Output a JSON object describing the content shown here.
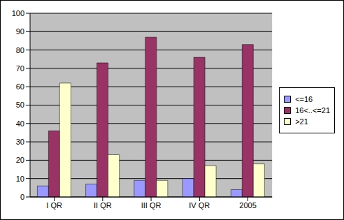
{
  "chart_data": {
    "type": "bar",
    "categories": [
      "I QR",
      "II QR",
      "III QR",
      "IV QR",
      "2005"
    ],
    "series": [
      {
        "name": "<=16",
        "color": "#9999FF",
        "values": [
          6,
          7,
          9,
          10,
          4
        ]
      },
      {
        "name": "16<..<=21",
        "color": "#993366",
        "values": [
          36,
          73,
          87,
          76,
          83
        ]
      },
      {
        "name": ">21",
        "color": "#FFFFCC",
        "values": [
          62,
          23,
          9,
          17,
          18
        ]
      }
    ],
    "ylim": [
      0,
      100
    ],
    "yticks": [
      0,
      10,
      20,
      30,
      40,
      50,
      60,
      70,
      80,
      90,
      100
    ],
    "grid": true,
    "legend": "right"
  }
}
